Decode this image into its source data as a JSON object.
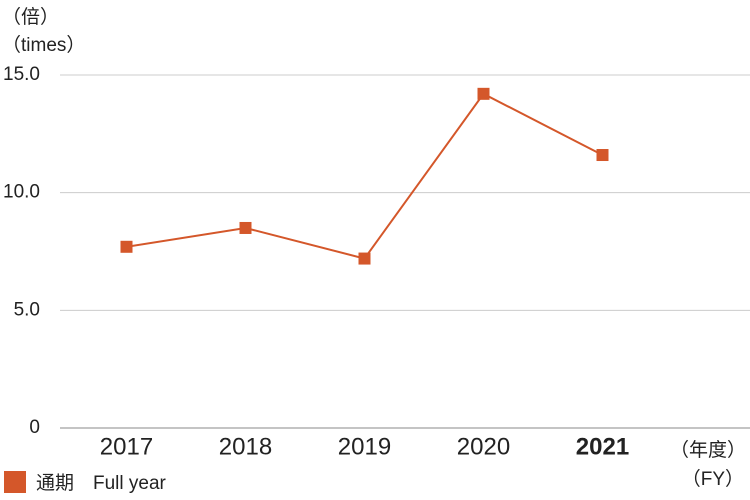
{
  "chart_data": {
    "type": "line",
    "y_unit_labels": [
      "（倍）",
      "（times）"
    ],
    "x_unit_labels": [
      "（年度）",
      "（FY）"
    ],
    "categories": [
      "2017",
      "2018",
      "2019",
      "2020",
      "2021"
    ],
    "series": [
      {
        "name": "通期　Full year",
        "color": "#d4572a",
        "values": [
          7.7,
          8.5,
          7.2,
          14.2,
          11.6
        ]
      }
    ],
    "ylim": [
      0,
      15
    ],
    "yticks": [
      0,
      {
        "value": 5,
        "label": "5.0"
      },
      {
        "value": 10,
        "label": "10.0"
      },
      {
        "value": 15,
        "label": "15.0"
      }
    ],
    "grid": true,
    "legend": "bottom-left"
  }
}
